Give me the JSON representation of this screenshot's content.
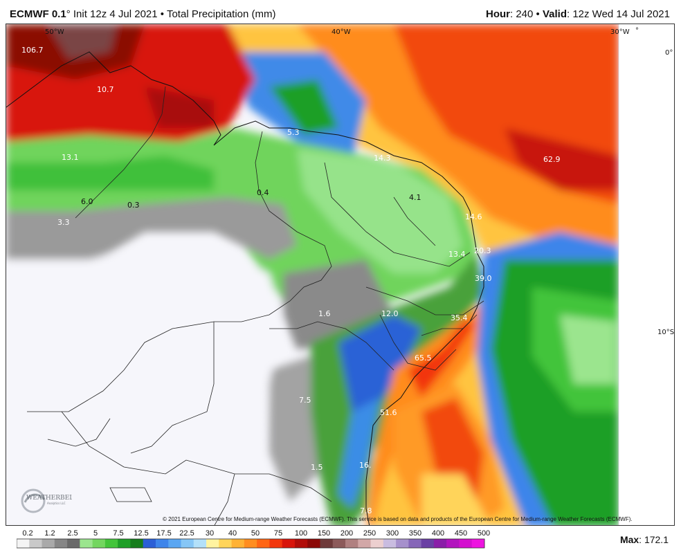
{
  "header": {
    "model": "ECMWF 0.1",
    "degree": "°",
    "init": "Init 12z 4 Jul 2021",
    "product": "Total Precipitation (mm)",
    "separator": "•",
    "hour_label": "Hour",
    "hour_value": ": 240",
    "valid_label": "Valid",
    "valid_value": ": 12z Wed 14 Jul 2021"
  },
  "axes": {
    "lon_labels": [
      "50°W",
      "40°W",
      "30°W"
    ],
    "lat_labels": [
      "0°",
      "10°S"
    ],
    "degree_mark": "°"
  },
  "point_values": [
    "106.7",
    "10.7",
    "13.1",
    "6.0",
    "0.3",
    "0.4",
    "3.3",
    "5.3",
    "14.3",
    "4.1",
    "14.6",
    "62.9",
    "20.3",
    "13.4",
    "39.0",
    "1.6",
    "12.0",
    "35.4",
    "65.5",
    "7.5",
    "51.6",
    "1.5",
    "16.",
    "7.8"
  ],
  "copyright": "© 2021 European Centre for Medium-range Weather Forecasts (ECMWF). This service is based on data and products of the European Centre for Medium-range Weather Forecasts (ECMWF).",
  "logo": {
    "text": "WEATHERBELL",
    "subtext": "Analytics LLC"
  },
  "colorbar": {
    "labels": [
      "0.2",
      "1.2",
      "2.5",
      "5",
      "7.5",
      "12.5",
      "17.5",
      "22.5",
      "30",
      "40",
      "50",
      "75",
      "100",
      "150",
      "200",
      "250",
      "300",
      "350",
      "400",
      "450",
      "500"
    ],
    "colors": [
      "#f4f4f4",
      "#c9c9c9",
      "#a9a9a9",
      "#868686",
      "#6a6a6a",
      "#9be58e",
      "#73d65f",
      "#43c43a",
      "#1e9f27",
      "#167d1c",
      "#2b5fd6",
      "#3e85ea",
      "#5aa6f2",
      "#86c6f6",
      "#b3e0f9",
      "#fff3a0",
      "#ffd45a",
      "#ffb234",
      "#ff8d1f",
      "#ff6513",
      "#f2360c",
      "#d8140a",
      "#b10c08",
      "#8b0806",
      "#6e3a3a",
      "#8c5a5a",
      "#b08080",
      "#d2a7a7",
      "#eccfcf",
      "#c9bce0",
      "#a690cc",
      "#8666b8",
      "#6a3fa4",
      "#8a1ea8",
      "#b214be",
      "#d40fcf",
      "#ee14e0"
    ],
    "max_label": "Max",
    "max_value": ": 172.1"
  }
}
